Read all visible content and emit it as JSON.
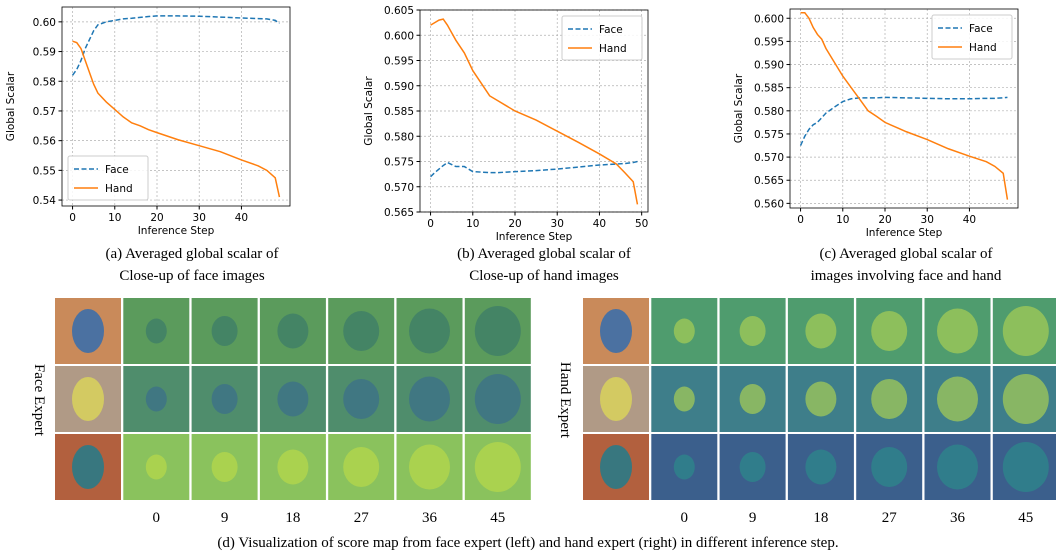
{
  "chart_data": [
    {
      "type": "line",
      "xlabel": "Inference Step",
      "ylabel": "Global Scalar",
      "x": [
        0,
        1,
        2,
        3,
        4,
        5,
        6,
        8,
        10,
        12,
        14,
        16,
        18,
        20,
        25,
        30,
        35,
        40,
        44,
        46,
        48,
        49
      ],
      "xlim": [
        -2.5,
        51.5
      ],
      "xticks": [
        0,
        10,
        20,
        30,
        40
      ],
      "ylim": [
        0.538,
        0.605
      ],
      "yticks": [
        0.54,
        0.55,
        0.56,
        0.57,
        0.58,
        0.59,
        {
          "value": 0.6,
          "label": "0.60"
        }
      ],
      "grid": true,
      "legend": "lower left",
      "series": [
        {
          "name": "Face",
          "color": "#1f77b4",
          "linestyle": "dashed",
          "values": [
            0.582,
            0.584,
            0.587,
            0.591,
            0.594,
            0.597,
            0.599,
            0.6,
            0.6005,
            0.601,
            0.6012,
            0.6015,
            0.6018,
            0.602,
            0.602,
            0.6019,
            0.6016,
            0.6013,
            0.6011,
            0.601,
            0.6005,
            0.5995
          ]
        },
        {
          "name": "Hand",
          "color": "#ff7f0e",
          "linestyle": "solid",
          "values": [
            0.5935,
            0.593,
            0.591,
            0.587,
            0.583,
            0.579,
            0.576,
            0.573,
            0.5705,
            0.568,
            0.566,
            0.565,
            0.5637,
            0.5627,
            0.5603,
            0.5583,
            0.5563,
            0.5535,
            0.5515,
            0.55,
            0.5475,
            0.541
          ]
        }
      ]
    },
    {
      "type": "line",
      "xlabel": "Inference Step",
      "ylabel": "Global Scalar",
      "x": [
        0,
        1,
        2,
        3,
        4,
        5,
        6,
        8,
        10,
        12,
        14,
        16,
        18,
        20,
        25,
        30,
        35,
        40,
        44,
        46,
        48,
        49
      ],
      "xlim": [
        -2.5,
        51.5
      ],
      "xticks": [
        0,
        10,
        20,
        30,
        40,
        50
      ],
      "ylim": [
        0.565,
        0.605
      ],
      "yticks": [
        0.565,
        {
          "value": 0.57,
          "label": "0.570"
        },
        0.575,
        {
          "value": 0.58,
          "label": "0.580"
        },
        0.585,
        {
          "value": 0.59,
          "label": "0.590"
        },
        0.595,
        {
          "value": 0.6,
          "label": "0.600"
        },
        0.605
      ],
      "grid": true,
      "legend": "upper right",
      "series": [
        {
          "name": "Face",
          "color": "#1f77b4",
          "linestyle": "dashed",
          "values": [
            0.572,
            0.5728,
            0.5735,
            0.5742,
            0.5748,
            0.5744,
            0.574,
            0.574,
            0.573,
            0.5729,
            0.5728,
            0.5728,
            0.5729,
            0.573,
            0.5732,
            0.5735,
            0.5739,
            0.5743,
            0.5745,
            0.5746,
            0.5748,
            0.575
          ]
        },
        {
          "name": "Hand",
          "color": "#ff7f0e",
          "linestyle": "solid",
          "values": [
            0.602,
            0.6025,
            0.603,
            0.6032,
            0.602,
            0.6005,
            0.599,
            0.5965,
            0.593,
            0.5905,
            0.588,
            0.587,
            0.586,
            0.585,
            0.5832,
            0.581,
            0.5788,
            0.5765,
            0.5745,
            0.5728,
            0.571,
            0.5665
          ]
        }
      ]
    },
    {
      "type": "line",
      "xlabel": "Inference Step",
      "ylabel": "Global Scalar",
      "x": [
        0,
        1,
        2,
        3,
        4,
        5,
        6,
        8,
        10,
        12,
        14,
        16,
        18,
        20,
        25,
        30,
        35,
        40,
        44,
        46,
        48,
        49
      ],
      "xlim": [
        -2.5,
        51.5
      ],
      "xticks": [
        0,
        10,
        20,
        30,
        40
      ],
      "ylim": [
        0.559,
        0.602
      ],
      "yticks": [
        {
          "value": 0.56,
          "label": "0.560"
        },
        0.565,
        {
          "value": 0.57,
          "label": "0.570"
        },
        0.575,
        {
          "value": 0.58,
          "label": "0.580"
        },
        0.585,
        {
          "value": 0.59,
          "label": "0.590"
        },
        0.595,
        {
          "value": 0.6,
          "label": "0.600"
        }
      ],
      "grid": true,
      "legend": "upper right",
      "series": [
        {
          "name": "Face",
          "color": "#1f77b4",
          "linestyle": "dashed",
          "values": [
            0.5725,
            0.5745,
            0.576,
            0.577,
            0.5775,
            0.5785,
            0.5795,
            0.5808,
            0.582,
            0.5826,
            0.5828,
            0.5828,
            0.5828,
            0.5829,
            0.5828,
            0.5827,
            0.5826,
            0.5826,
            0.5827,
            0.5827,
            0.5828,
            0.5829
          ]
        },
        {
          "name": "Hand",
          "color": "#ff7f0e",
          "linestyle": "solid",
          "values": [
            0.6012,
            0.6012,
            0.6,
            0.598,
            0.5965,
            0.5955,
            0.5935,
            0.5905,
            0.5875,
            0.585,
            0.5825,
            0.58,
            0.5788,
            0.5775,
            0.5755,
            0.5738,
            0.5718,
            0.5702,
            0.569,
            0.568,
            0.5665,
            0.5608
          ]
        }
      ]
    }
  ],
  "figure": {
    "captions": [
      [
        "(a) Averaged global scalar of",
        "Close-up of face images"
      ],
      [
        "(b) Averaged global scalar of",
        "Close-up of hand images"
      ],
      [
        "(c) Averaged global scalar of",
        "images involving face and hand"
      ]
    ],
    "grids": [
      {
        "label": "Face Expert",
        "steps": [
          "0",
          "9",
          "18",
          "27",
          "36",
          "45"
        ]
      },
      {
        "label": "Hand Expert",
        "steps": [
          "0",
          "9",
          "18",
          "27",
          "36",
          "45"
        ]
      }
    ],
    "caption": "(d) Visualization of score map from face expert (left) and hand expert (right) in different inference step."
  }
}
